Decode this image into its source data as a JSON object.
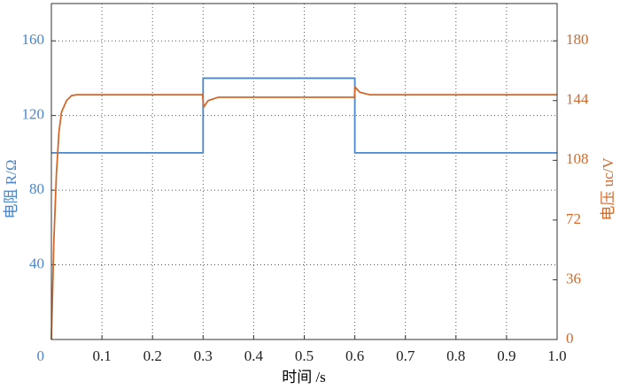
{
  "chart_data": {
    "type": "line",
    "xlabel": "时间 /s",
    "ylabel": "电阻 R/Ω",
    "y2label": "电压 uc/V",
    "xlim": [
      0,
      1
    ],
    "xticks": [
      0.1,
      0.2,
      0.3,
      0.4,
      0.5,
      0.6,
      0.7,
      0.8,
      0.9,
      {
        "value": 1,
        "label": "1.0"
      }
    ],
    "ylim": [
      0,
      180
    ],
    "yticks": [
      0,
      40,
      80,
      120,
      160
    ],
    "y2lim": [
      0,
      202.5
    ],
    "y2ticks": [
      0,
      36,
      72,
      108,
      144,
      180
    ],
    "ycolor": "#4a86c8",
    "y2color": "#d2692a",
    "grid": true,
    "series": [
      {
        "color": "#4a86c8",
        "axis": "y",
        "x": [
          0,
          0.3,
          0.3,
          0.6,
          0.6,
          1.0
        ],
        "values": [
          100,
          100,
          140,
          140,
          100,
          100
        ]
      },
      {
        "color": "#d2692a",
        "axis": "y2",
        "x": [
          0,
          0.005,
          0.01,
          0.015,
          0.02,
          0.03,
          0.04,
          0.05,
          0.1,
          0.2,
          0.299,
          0.301,
          0.31,
          0.33,
          0.4,
          0.5,
          0.599,
          0.601,
          0.61,
          0.63,
          0.7,
          1.0
        ],
        "values": [
          0,
          60,
          100,
          125,
          137,
          144,
          147,
          147.5,
          147.5,
          147.5,
          147.5,
          140,
          144,
          146,
          146,
          146,
          146,
          152,
          149,
          147.5,
          147.5,
          147.5
        ]
      }
    ]
  }
}
